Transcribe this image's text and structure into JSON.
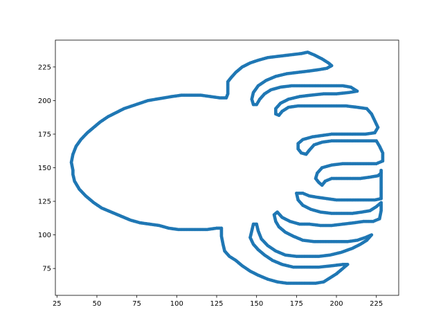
{
  "chart_data": {
    "type": "scatter",
    "title": "",
    "xlabel": "",
    "ylabel": "",
    "xlim": [
      24,
      239
    ],
    "ylim": [
      55,
      245
    ],
    "xticks": [
      25,
      50,
      75,
      100,
      125,
      150,
      175,
      200,
      225
    ],
    "yticks": [
      75,
      100,
      125,
      150,
      175,
      200,
      225
    ],
    "grid": false,
    "color": "#1f77b4",
    "series": [
      {
        "values": [
          [
            35,
            148
          ],
          [
            34,
            154
          ],
          [
            35,
            160
          ],
          [
            37,
            166
          ],
          [
            40,
            171
          ],
          [
            44,
            176
          ],
          [
            48,
            180
          ],
          [
            52,
            184
          ],
          [
            57,
            188
          ],
          [
            62,
            191
          ],
          [
            67,
            194
          ],
          [
            72,
            196
          ],
          [
            77,
            198
          ],
          [
            82,
            200
          ],
          [
            87,
            201
          ],
          [
            92,
            202
          ],
          [
            97,
            203
          ],
          [
            103,
            204
          ],
          [
            109,
            204
          ],
          [
            115,
            204
          ],
          [
            121,
            203
          ],
          [
            127,
            202
          ],
          [
            131,
            202
          ],
          [
            132,
            205
          ],
          [
            132,
            210
          ],
          [
            132,
            214
          ],
          [
            134,
            217
          ],
          [
            137,
            221
          ],
          [
            141,
            225
          ],
          [
            146,
            228
          ],
          [
            151,
            230
          ],
          [
            157,
            232
          ],
          [
            164,
            233
          ],
          [
            171,
            234
          ],
          [
            178,
            235
          ],
          [
            182,
            236
          ],
          [
            186,
            234
          ],
          [
            191,
            231
          ],
          [
            195,
            228
          ],
          [
            197,
            226
          ],
          [
            194,
            224
          ],
          [
            189,
            223
          ],
          [
            183,
            222
          ],
          [
            176,
            221
          ],
          [
            169,
            220
          ],
          [
            162,
            218
          ],
          [
            156,
            215
          ],
          [
            151,
            211
          ],
          [
            148,
            206
          ],
          [
            147,
            201
          ],
          [
            148,
            197
          ],
          [
            150,
            197
          ],
          [
            152,
            201
          ],
          [
            155,
            205
          ],
          [
            159,
            208
          ],
          [
            165,
            210
          ],
          [
            172,
            211
          ],
          [
            180,
            211
          ],
          [
            188,
            211
          ],
          [
            196,
            211
          ],
          [
            204,
            211
          ],
          [
            209,
            210
          ],
          [
            213,
            207
          ],
          [
            208,
            206
          ],
          [
            200,
            205
          ],
          [
            192,
            205
          ],
          [
            184,
            204
          ],
          [
            177,
            203
          ],
          [
            170,
            201
          ],
          [
            165,
            198
          ],
          [
            162,
            194
          ],
          [
            162,
            190
          ],
          [
            164,
            189
          ],
          [
            166,
            192
          ],
          [
            170,
            195
          ],
          [
            176,
            196
          ],
          [
            183,
            196
          ],
          [
            190,
            196
          ],
          [
            198,
            196
          ],
          [
            206,
            196
          ],
          [
            213,
            195
          ],
          [
            219,
            194
          ],
          [
            222,
            190
          ],
          [
            224,
            185
          ],
          [
            226,
            180
          ],
          [
            224,
            176
          ],
          [
            218,
            175
          ],
          [
            211,
            175
          ],
          [
            204,
            175
          ],
          [
            197,
            175
          ],
          [
            191,
            174
          ],
          [
            185,
            173
          ],
          [
            179,
            171
          ],
          [
            176,
            168
          ],
          [
            176,
            164
          ],
          [
            178,
            161
          ],
          [
            181,
            160
          ],
          [
            183,
            163
          ],
          [
            186,
            167
          ],
          [
            191,
            169
          ],
          [
            197,
            170
          ],
          [
            204,
            170
          ],
          [
            211,
            170
          ],
          [
            218,
            170
          ],
          [
            225,
            170
          ],
          [
            227,
            166
          ],
          [
            229,
            161
          ],
          [
            229,
            155
          ],
          [
            225,
            153
          ],
          [
            218,
            153
          ],
          [
            211,
            153
          ],
          [
            204,
            153
          ],
          [
            197,
            152
          ],
          [
            191,
            150
          ],
          [
            188,
            146
          ],
          [
            187,
            142
          ],
          [
            189,
            139
          ],
          [
            191,
            137
          ],
          [
            193,
            140
          ],
          [
            197,
            142
          ],
          [
            203,
            142
          ],
          [
            209,
            142
          ],
          [
            215,
            142
          ],
          [
            221,
            143
          ],
          [
            226,
            144
          ],
          [
            228,
            146
          ],
          [
            228,
            148
          ],
          [
            228,
            140
          ],
          [
            228,
            132
          ],
          [
            228,
            127
          ],
          [
            224,
            126
          ],
          [
            218,
            126
          ],
          [
            212,
            126
          ],
          [
            206,
            126
          ],
          [
            200,
            126
          ],
          [
            194,
            127
          ],
          [
            188,
            128
          ],
          [
            183,
            129
          ],
          [
            179,
            131
          ],
          [
            175,
            131
          ],
          [
            176,
            126
          ],
          [
            179,
            122
          ],
          [
            184,
            119
          ],
          [
            190,
            117
          ],
          [
            197,
            116
          ],
          [
            204,
            116
          ],
          [
            210,
            116
          ],
          [
            216,
            117
          ],
          [
            221,
            118
          ],
          [
            225,
            121
          ],
          [
            228,
            124
          ],
          [
            228,
            118
          ],
          [
            227,
            112
          ],
          [
            223,
            110
          ],
          [
            217,
            110
          ],
          [
            211,
            109
          ],
          [
            204,
            108
          ],
          [
            197,
            107
          ],
          [
            190,
            107
          ],
          [
            183,
            108
          ],
          [
            177,
            108
          ],
          [
            171,
            110
          ],
          [
            166,
            113
          ],
          [
            163,
            117
          ],
          [
            161,
            115
          ],
          [
            162,
            110
          ],
          [
            164,
            106
          ],
          [
            168,
            102
          ],
          [
            173,
            99
          ],
          [
            179,
            96
          ],
          [
            186,
            95
          ],
          [
            193,
            95
          ],
          [
            200,
            95
          ],
          [
            207,
            95
          ],
          [
            213,
            96
          ],
          [
            218,
            98
          ],
          [
            222,
            100
          ],
          [
            219,
            96
          ],
          [
            215,
            93
          ],
          [
            210,
            90
          ],
          [
            203,
            87
          ],
          [
            196,
            85
          ],
          [
            189,
            84
          ],
          [
            182,
            84
          ],
          [
            175,
            84
          ],
          [
            168,
            85
          ],
          [
            162,
            88
          ],
          [
            157,
            92
          ],
          [
            153,
            97
          ],
          [
            151,
            103
          ],
          [
            150,
            108
          ],
          [
            148,
            108
          ],
          [
            147,
            103
          ],
          [
            146,
            98
          ],
          [
            148,
            93
          ],
          [
            151,
            89
          ],
          [
            155,
            85
          ],
          [
            160,
            81
          ],
          [
            166,
            78
          ],
          [
            173,
            76
          ],
          [
            181,
            76
          ],
          [
            189,
            76
          ],
          [
            197,
            77
          ],
          [
            204,
            78
          ],
          [
            207,
            78
          ],
          [
            204,
            75
          ],
          [
            200,
            71
          ],
          [
            196,
            68
          ],
          [
            192,
            65
          ],
          [
            187,
            64
          ],
          [
            181,
            64
          ],
          [
            175,
            64
          ],
          [
            169,
            64
          ],
          [
            163,
            65
          ],
          [
            157,
            67
          ],
          [
            151,
            70
          ],
          [
            146,
            73
          ],
          [
            141,
            77
          ],
          [
            137,
            81
          ],
          [
            133,
            84
          ],
          [
            130,
            88
          ],
          [
            129,
            93
          ],
          [
            128,
            99
          ],
          [
            128,
            105
          ],
          [
            125,
            105
          ],
          [
            119,
            104
          ],
          [
            113,
            104
          ],
          [
            107,
            104
          ],
          [
            101,
            104
          ],
          [
            95,
            105
          ],
          [
            89,
            107
          ],
          [
            83,
            108
          ],
          [
            77,
            109
          ],
          [
            71,
            111
          ],
          [
            65,
            114
          ],
          [
            59,
            117
          ],
          [
            53,
            120
          ],
          [
            48,
            124
          ],
          [
            43,
            129
          ],
          [
            39,
            134
          ],
          [
            36,
            140
          ],
          [
            35,
            145
          ]
        ]
      }
    ]
  }
}
